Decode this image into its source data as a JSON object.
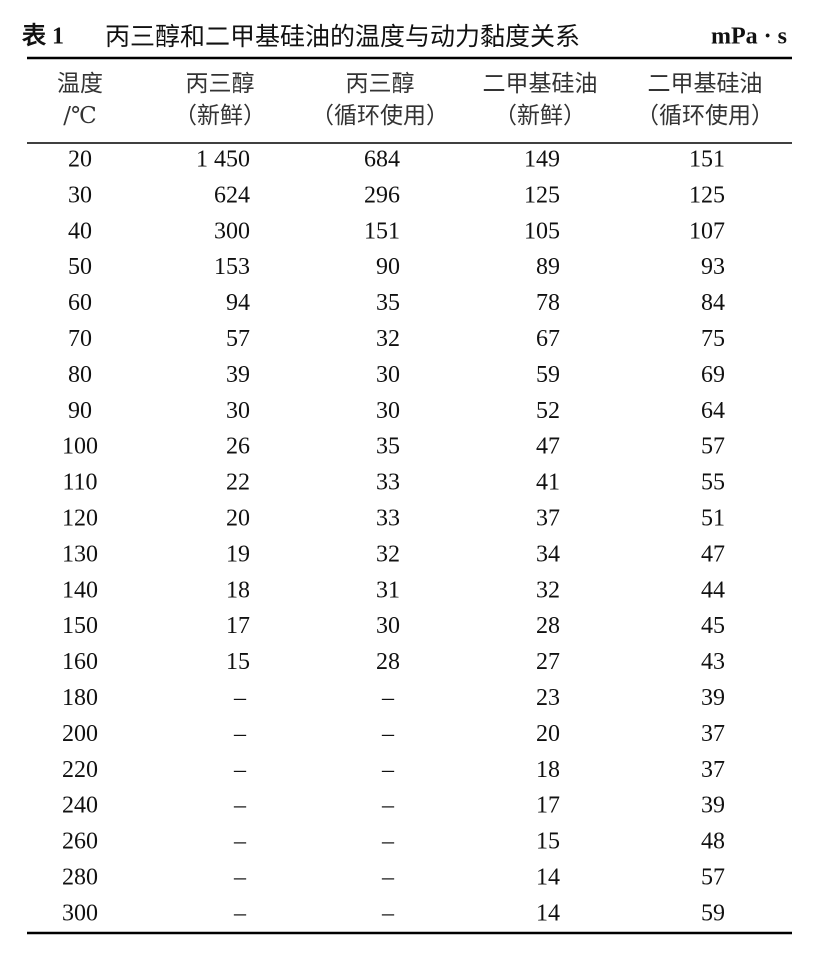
{
  "title": {
    "number": "表 1",
    "text": "丙三醇和二甲基硅油的温度与动力黏度关系",
    "unit": "mPa · s"
  },
  "table": {
    "header": [
      [
        "温度",
        "/℃"
      ],
      [
        "丙三醇",
        "（新鲜）"
      ],
      [
        "丙三醇",
        "（循环使用）"
      ],
      [
        "二甲基硅油",
        "（新鲜）"
      ],
      [
        "二甲基硅油",
        "（循环使用）"
      ]
    ],
    "rows": [
      [
        "20",
        "1 450",
        "684",
        "149",
        "151"
      ],
      [
        "30",
        "624",
        "296",
        "125",
        "125"
      ],
      [
        "40",
        "300",
        "151",
        "105",
        "107"
      ],
      [
        "50",
        "153",
        "90",
        "89",
        "93"
      ],
      [
        "60",
        "94",
        "35",
        "78",
        "84"
      ],
      [
        "70",
        "57",
        "32",
        "67",
        "75"
      ],
      [
        "80",
        "39",
        "30",
        "59",
        "69"
      ],
      [
        "90",
        "30",
        "30",
        "52",
        "64"
      ],
      [
        "100",
        "26",
        "35",
        "47",
        "57"
      ],
      [
        "110",
        "22",
        "33",
        "41",
        "55"
      ],
      [
        "120",
        "20",
        "33",
        "37",
        "51"
      ],
      [
        "130",
        "19",
        "32",
        "34",
        "47"
      ],
      [
        "140",
        "18",
        "31",
        "32",
        "44"
      ],
      [
        "150",
        "17",
        "30",
        "28",
        "45"
      ],
      [
        "160",
        "15",
        "28",
        "27",
        "43"
      ],
      [
        "180",
        "–",
        "–",
        "23",
        "39"
      ],
      [
        "200",
        "–",
        "–",
        "20",
        "37"
      ],
      [
        "220",
        "–",
        "–",
        "18",
        "37"
      ],
      [
        "240",
        "–",
        "–",
        "17",
        "39"
      ],
      [
        "260",
        "–",
        "–",
        "15",
        "48"
      ],
      [
        "280",
        "–",
        "–",
        "14",
        "57"
      ],
      [
        "300",
        "–",
        "–",
        "14",
        "59"
      ]
    ]
  }
}
